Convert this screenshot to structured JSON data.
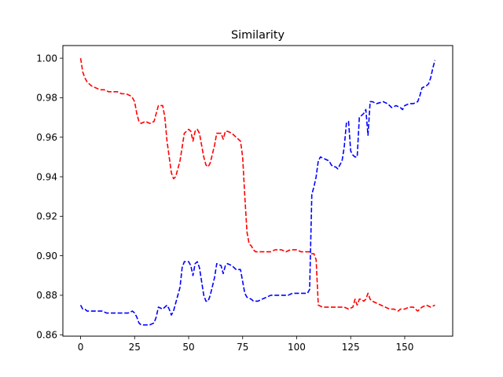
{
  "chart_data": {
    "type": "line",
    "title": "Similarity",
    "xlabel": "",
    "ylabel": "",
    "xlim": [
      -8.2,
      172.2
    ],
    "ylim": [
      0.8593,
      1.0064
    ],
    "xticks": [
      0,
      25,
      50,
      75,
      100,
      125,
      150
    ],
    "yticks": [
      0.86,
      0.88,
      0.9,
      0.92,
      0.94,
      0.96,
      0.98,
      1.0
    ],
    "ytick_labels": [
      "0.86",
      "0.88",
      "0.90",
      "0.92",
      "0.94",
      "0.96",
      "0.98",
      "1.00"
    ],
    "grid": false,
    "legend": "none",
    "series": [
      {
        "color": "#ff0000",
        "dash": "dashed",
        "points": [
          [
            0,
            1.0
          ],
          [
            1,
            0.993
          ],
          [
            2,
            0.99
          ],
          [
            3,
            0.988
          ],
          [
            5,
            0.986
          ],
          [
            7,
            0.985
          ],
          [
            9,
            0.984
          ],
          [
            11,
            0.984
          ],
          [
            13,
            0.983
          ],
          [
            15,
            0.983
          ],
          [
            17,
            0.983
          ],
          [
            19,
            0.982
          ],
          [
            21,
            0.982
          ],
          [
            23,
            0.981
          ],
          [
            24,
            0.98
          ],
          [
            25,
            0.978
          ],
          [
            26,
            0.972
          ],
          [
            27,
            0.968
          ],
          [
            28,
            0.967
          ],
          [
            30,
            0.968
          ],
          [
            32,
            0.967
          ],
          [
            34,
            0.968
          ],
          [
            35,
            0.972
          ],
          [
            36,
            0.976
          ],
          [
            38,
            0.976
          ],
          [
            39,
            0.97
          ],
          [
            40,
            0.958
          ],
          [
            41,
            0.95
          ],
          [
            42,
            0.942
          ],
          [
            43,
            0.939
          ],
          [
            44,
            0.94
          ],
          [
            46,
            0.948
          ],
          [
            48,
            0.962
          ],
          [
            50,
            0.964
          ],
          [
            51,
            0.963
          ],
          [
            52,
            0.958
          ],
          [
            53,
            0.963
          ],
          [
            54,
            0.964
          ],
          [
            55,
            0.962
          ],
          [
            56,
            0.956
          ],
          [
            57,
            0.95
          ],
          [
            58,
            0.946
          ],
          [
            59,
            0.945
          ],
          [
            60,
            0.947
          ],
          [
            62,
            0.956
          ],
          [
            63,
            0.962
          ],
          [
            65,
            0.962
          ],
          [
            66,
            0.959
          ],
          [
            67,
            0.963
          ],
          [
            68,
            0.963
          ],
          [
            70,
            0.962
          ],
          [
            72,
            0.96
          ],
          [
            73,
            0.959
          ],
          [
            74,
            0.958
          ],
          [
            75,
            0.95
          ],
          [
            76,
            0.93
          ],
          [
            77,
            0.912
          ],
          [
            78,
            0.906
          ],
          [
            79,
            0.905
          ],
          [
            80,
            0.903
          ],
          [
            81,
            0.902
          ],
          [
            84,
            0.902
          ],
          [
            88,
            0.902
          ],
          [
            90,
            0.903
          ],
          [
            93,
            0.903
          ],
          [
            95,
            0.902
          ],
          [
            97,
            0.903
          ],
          [
            100,
            0.903
          ],
          [
            102,
            0.902
          ],
          [
            104,
            0.902
          ],
          [
            106,
            0.902
          ],
          [
            107,
            0.901
          ],
          [
            108,
            0.901
          ],
          [
            109,
            0.898
          ],
          [
            110,
            0.875
          ],
          [
            112,
            0.874
          ],
          [
            114,
            0.874
          ],
          [
            116,
            0.874
          ],
          [
            118,
            0.874
          ],
          [
            120,
            0.874
          ],
          [
            122,
            0.874
          ],
          [
            124,
            0.873
          ],
          [
            126,
            0.874
          ],
          [
            127,
            0.878
          ],
          [
            128,
            0.875
          ],
          [
            129,
            0.878
          ],
          [
            130,
            0.878
          ],
          [
            131,
            0.877
          ],
          [
            132,
            0.878
          ],
          [
            133,
            0.881
          ],
          [
            134,
            0.878
          ],
          [
            135,
            0.877
          ],
          [
            137,
            0.876
          ],
          [
            139,
            0.875
          ],
          [
            141,
            0.874
          ],
          [
            143,
            0.873
          ],
          [
            145,
            0.873
          ],
          [
            147,
            0.872
          ],
          [
            148,
            0.873
          ],
          [
            150,
            0.873
          ],
          [
            152,
            0.874
          ],
          [
            154,
            0.874
          ],
          [
            156,
            0.872
          ],
          [
            158,
            0.874
          ],
          [
            160,
            0.875
          ],
          [
            162,
            0.874
          ],
          [
            164,
            0.875
          ]
        ]
      },
      {
        "color": "#0000ff",
        "dash": "dashed",
        "points": [
          [
            0,
            0.875
          ],
          [
            1,
            0.873
          ],
          [
            2,
            0.873
          ],
          [
            3,
            0.872
          ],
          [
            5,
            0.872
          ],
          [
            8,
            0.872
          ],
          [
            10,
            0.872
          ],
          [
            12,
            0.871
          ],
          [
            15,
            0.871
          ],
          [
            18,
            0.871
          ],
          [
            20,
            0.871
          ],
          [
            22,
            0.871
          ],
          [
            24,
            0.872
          ],
          [
            25,
            0.871
          ],
          [
            26,
            0.869
          ],
          [
            27,
            0.866
          ],
          [
            28,
            0.865
          ],
          [
            30,
            0.865
          ],
          [
            32,
            0.865
          ],
          [
            34,
            0.866
          ],
          [
            35,
            0.869
          ],
          [
            36,
            0.874
          ],
          [
            38,
            0.873
          ],
          [
            40,
            0.875
          ],
          [
            41,
            0.873
          ],
          [
            42,
            0.87
          ],
          [
            43,
            0.872
          ],
          [
            44,
            0.876
          ],
          [
            46,
            0.884
          ],
          [
            47,
            0.894
          ],
          [
            48,
            0.897
          ],
          [
            50,
            0.897
          ],
          [
            51,
            0.895
          ],
          [
            52,
            0.89
          ],
          [
            53,
            0.896
          ],
          [
            54,
            0.897
          ],
          [
            55,
            0.894
          ],
          [
            56,
            0.887
          ],
          [
            57,
            0.88
          ],
          [
            58,
            0.877
          ],
          [
            59,
            0.877
          ],
          [
            60,
            0.88
          ],
          [
            62,
            0.889
          ],
          [
            63,
            0.896
          ],
          [
            65,
            0.895
          ],
          [
            66,
            0.891
          ],
          [
            67,
            0.895
          ],
          [
            68,
            0.896
          ],
          [
            70,
            0.895
          ],
          [
            72,
            0.893
          ],
          [
            73,
            0.893
          ],
          [
            74,
            0.893
          ],
          [
            75,
            0.887
          ],
          [
            76,
            0.881
          ],
          [
            77,
            0.879
          ],
          [
            79,
            0.878
          ],
          [
            80,
            0.877
          ],
          [
            82,
            0.877
          ],
          [
            84,
            0.878
          ],
          [
            86,
            0.879
          ],
          [
            88,
            0.88
          ],
          [
            90,
            0.88
          ],
          [
            92,
            0.88
          ],
          [
            94,
            0.88
          ],
          [
            96,
            0.88
          ],
          [
            98,
            0.881
          ],
          [
            100,
            0.881
          ],
          [
            102,
            0.881
          ],
          [
            104,
            0.881
          ],
          [
            105,
            0.881
          ],
          [
            106,
            0.883
          ],
          [
            107,
            0.931
          ],
          [
            108,
            0.935
          ],
          [
            109,
            0.94
          ],
          [
            110,
            0.948
          ],
          [
            111,
            0.95
          ],
          [
            113,
            0.949
          ],
          [
            115,
            0.948
          ],
          [
            116,
            0.946
          ],
          [
            117,
            0.945
          ],
          [
            118,
            0.945
          ],
          [
            119,
            0.944
          ],
          [
            120,
            0.946
          ],
          [
            121,
            0.948
          ],
          [
            122,
            0.955
          ],
          [
            123,
            0.967
          ],
          [
            124,
            0.968
          ],
          [
            125,
            0.953
          ],
          [
            126,
            0.951
          ],
          [
            127,
            0.95
          ],
          [
            128,
            0.95
          ],
          [
            129,
            0.97
          ],
          [
            130,
            0.971
          ],
          [
            131,
            0.972
          ],
          [
            132,
            0.974
          ],
          [
            133,
            0.961
          ],
          [
            134,
            0.978
          ],
          [
            135,
            0.978
          ],
          [
            137,
            0.977
          ],
          [
            140,
            0.978
          ],
          [
            142,
            0.977
          ],
          [
            144,
            0.975
          ],
          [
            146,
            0.976
          ],
          [
            148,
            0.975
          ],
          [
            149,
            0.974
          ],
          [
            150,
            0.976
          ],
          [
            152,
            0.977
          ],
          [
            154,
            0.977
          ],
          [
            156,
            0.978
          ],
          [
            157,
            0.981
          ],
          [
            158,
            0.985
          ],
          [
            160,
            0.986
          ],
          [
            161,
            0.987
          ],
          [
            162,
            0.99
          ],
          [
            163,
            0.995
          ],
          [
            164,
            0.999
          ]
        ]
      }
    ]
  }
}
